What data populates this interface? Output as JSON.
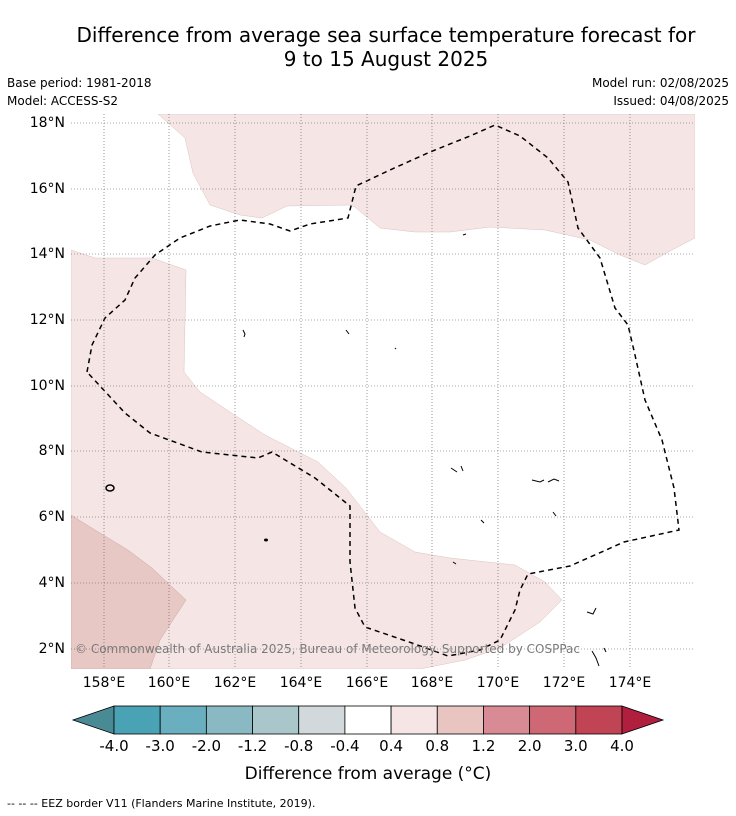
{
  "title": {
    "line1": "Difference from average sea surface temperature forecast for",
    "line2": "9 to 15 August 2025"
  },
  "meta": {
    "base_period": "Base period: 1981-2018",
    "model": "Model: ACCESS-S2",
    "model_run": "Model run: 02/08/2025",
    "issued": "Issued: 04/08/2025"
  },
  "map": {
    "lat_labels": [
      "18°N",
      "16°N",
      "14°N",
      "12°N",
      "10°N",
      "8°N",
      "6°N",
      "4°N",
      "2°N"
    ],
    "lon_labels": [
      "158°E",
      "160°E",
      "162°E",
      "164°E",
      "166°E",
      "168°E",
      "170°E",
      "172°E",
      "174°E"
    ],
    "copyright": "© Commonwealth of Australia 2025, Bureau of Meteorology. Supported by COSPPac"
  },
  "colorbar": {
    "colors": [
      "#4a8a95",
      "#4aa3b4",
      "#69afbf",
      "#8ab9c4",
      "#a9c7cb",
      "#d1d9dc",
      "#ffffff",
      "#f5e6e5",
      "#e9c5c1",
      "#d98b95",
      "#cd6874",
      "#c04453",
      "#b01f3d"
    ],
    "tick_labels": [
      "-4.0",
      "-3.0",
      "-2.0",
      "-1.2",
      "-0.8",
      "-0.4",
      "0.4",
      "0.8",
      "1.2",
      "2.0",
      "3.0",
      "4.0"
    ],
    "title": "Difference from average (°C)"
  },
  "legend": {
    "eez": "--  --  -- EEZ border V11 (Flanders Marine Institute, 2019)."
  }
}
